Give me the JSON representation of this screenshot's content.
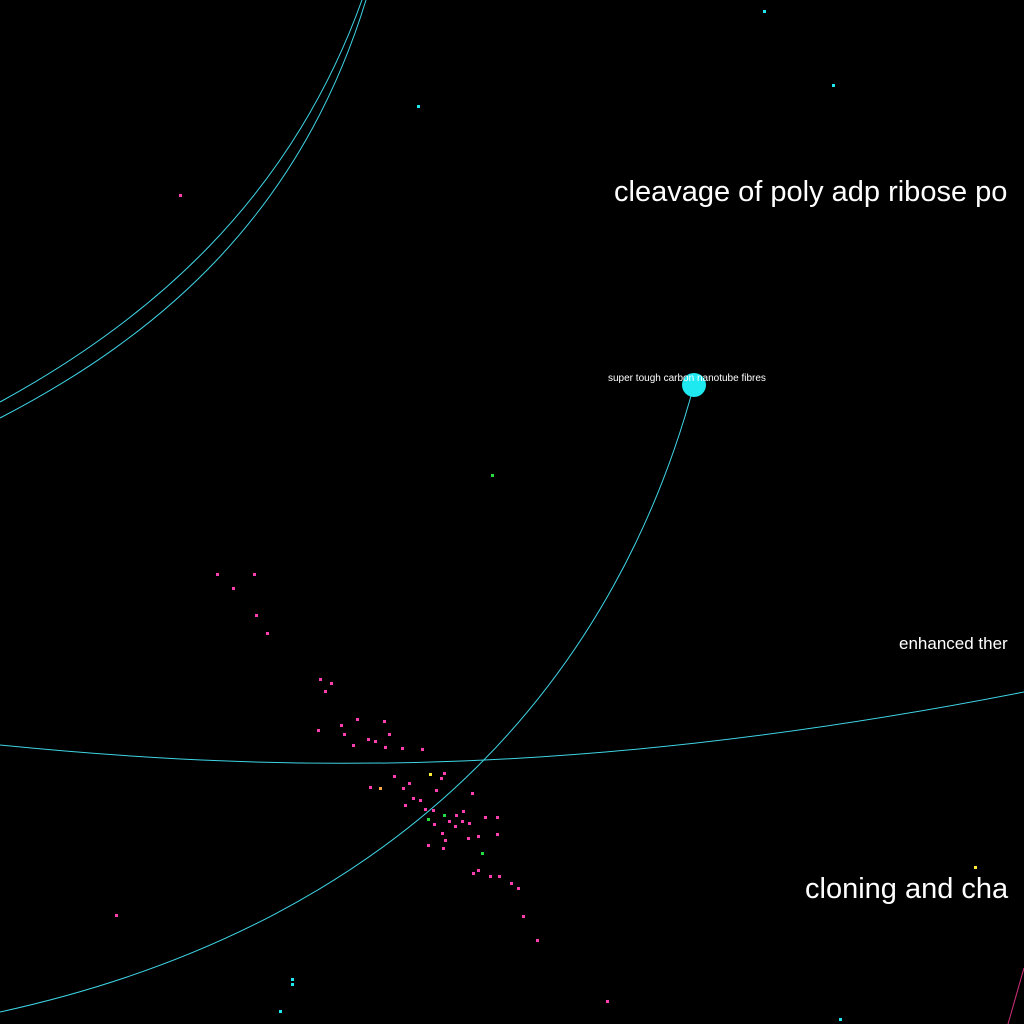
{
  "colors": {
    "background": "#000000",
    "edge_cyan": "#3fd6e6",
    "edge_magenta": "#d0307a",
    "node_cyan": "#1ee8f0",
    "node_pink": "#ff3fb0",
    "node_green": "#22dd44",
    "node_yellow": "#ffee33",
    "node_orange": "#ffaa44",
    "label": "#ffffff"
  },
  "labels": {
    "cleavage": "cleavage of poly adp ribose po",
    "nanotube": "super tough carbon nanotube fibres",
    "enhanced": "enhanced ther",
    "cloning": "cloning and cha"
  }
}
